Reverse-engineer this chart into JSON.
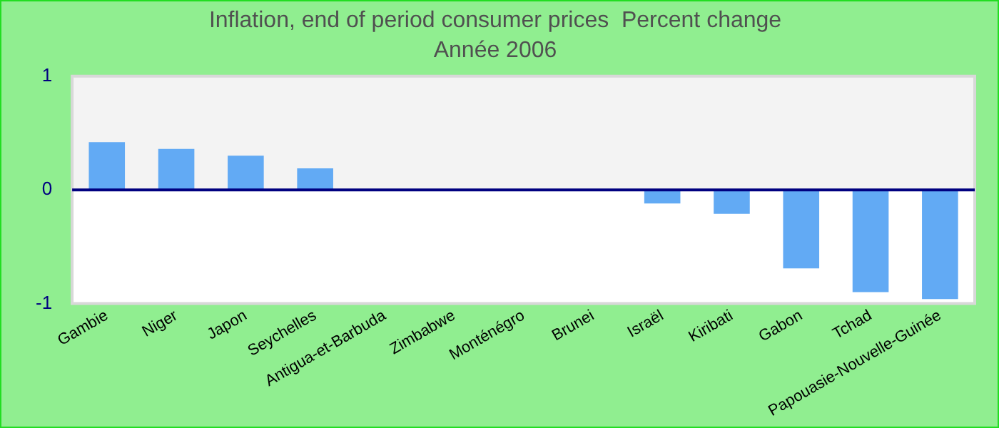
{
  "chart_data": {
    "type": "bar",
    "title": "Inflation, end of period consumer prices  Percent change",
    "subtitle": "Année 2006",
    "categories": [
      "Gambie",
      "Niger",
      "Japon",
      "Seychelles",
      "Antigua-et-Barbuda",
      "Zimbabwe",
      "Monténégro",
      "Brunei",
      "Israël",
      "Kiribati",
      "Gabon",
      "Tchad",
      "Papouasie-Nouvelle-Guinée"
    ],
    "values": [
      0.42,
      0.36,
      0.3,
      0.19,
      0,
      0,
      0,
      0,
      -0.12,
      -0.21,
      -0.69,
      -0.9,
      -0.96
    ],
    "color": "#62aaf4",
    "ylim": [
      -1,
      1
    ],
    "yticks": [
      -1,
      0,
      1
    ],
    "grid": false,
    "legend": false,
    "ref_lines": [
      {
        "axis": "y",
        "value": 0,
        "color": "#000080"
      }
    ]
  }
}
